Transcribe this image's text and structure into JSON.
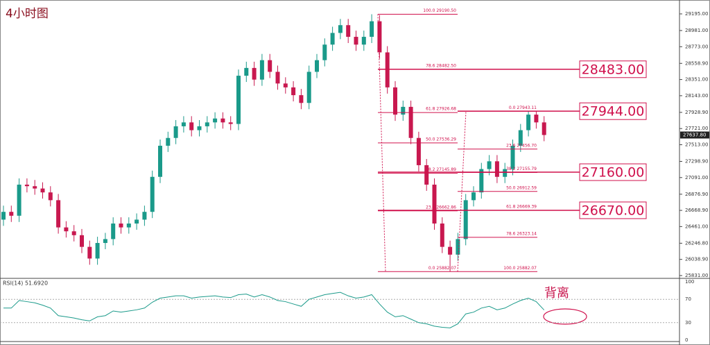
{
  "chart_data": {
    "type": "candlestick",
    "title": "4小时图",
    "open": [
      26550,
      26650,
      26600,
      27000,
      26980,
      26950,
      26900,
      26800,
      26450,
      26400,
      26350,
      26200,
      26050,
      26250,
      26300,
      26500,
      26450,
      26500,
      26550,
      26650,
      27100,
      27500,
      27600,
      27750,
      27800,
      27700,
      27750,
      27800,
      27850,
      27800,
      27780,
      28400,
      28500,
      28350,
      28600,
      28450,
      28300,
      28250,
      28150,
      28050,
      28450,
      28600,
      28800,
      28950,
      29050,
      28900,
      28800,
      28900,
      29100,
      28700,
      28250,
      27900,
      28000,
      27600,
      27250,
      27000,
      26500,
      26200,
      26100,
      26300,
      26800,
      26900,
      27200,
      27300,
      27100,
      27200,
      27500,
      27700,
      27900,
      27800
    ],
    "high": [
      26730,
      26730,
      27080,
      27080,
      27060,
      27030,
      26980,
      26880,
      26530,
      26480,
      26430,
      26280,
      26330,
      26380,
      26580,
      26580,
      26580,
      26630,
      26730,
      27180,
      27580,
      27680,
      27830,
      27880,
      27880,
      27830,
      27880,
      27930,
      27930,
      27880,
      28480,
      28580,
      28580,
      28680,
      28680,
      28530,
      28380,
      28330,
      28230,
      28530,
      28680,
      28880,
      29030,
      29130,
      29130,
      28980,
      28980,
      29190.5,
      29180,
      28780,
      28330,
      28080,
      28080,
      27680,
      27330,
      27080,
      26580,
      26280,
      26380,
      26880,
      26980,
      27280,
      27380,
      27380,
      27280,
      27580,
      27780,
      27943.11,
      27940,
      27880
    ],
    "low": [
      26470,
      26520,
      26520,
      26900,
      26870,
      26820,
      26720,
      26370,
      26320,
      26270,
      26120,
      25970,
      25970,
      26170,
      26220,
      26370,
      26370,
      26420,
      26470,
      26570,
      27020,
      27420,
      27520,
      27670,
      27620,
      27620,
      27670,
      27720,
      27720,
      27700,
      27700,
      28320,
      28270,
      28270,
      28370,
      28220,
      28170,
      28070,
      27970,
      27970,
      28370,
      28520,
      28720,
      28870,
      28820,
      28720,
      28720,
      28820,
      28620,
      28170,
      27820,
      27820,
      27520,
      27170,
      26920,
      26420,
      26120,
      25882.07,
      26020,
      26220,
      26720,
      26820,
      27120,
      27020,
      27020,
      27120,
      27420,
      27620,
      27720,
      27558
    ],
    "close": [
      26650,
      26600,
      27000,
      26980,
      26950,
      26900,
      26800,
      26450,
      26400,
      26350,
      26200,
      26050,
      26250,
      26300,
      26500,
      26450,
      26500,
      26550,
      26650,
      27100,
      27500,
      27600,
      27750,
      27800,
      27700,
      27750,
      27800,
      27850,
      27800,
      27780,
      28400,
      28500,
      28350,
      28600,
      28450,
      28300,
      28250,
      28150,
      28050,
      28450,
      28600,
      28800,
      28950,
      29050,
      28900,
      28800,
      28900,
      29100,
      28700,
      28250,
      27900,
      28000,
      27600,
      27250,
      27000,
      26500,
      26200,
      26100,
      26300,
      26800,
      26900,
      27200,
      27300,
      27100,
      27200,
      27500,
      27700,
      27900,
      27800,
      27637.8
    ],
    "up_color": "#1a9a8a",
    "down_color": "#c8184f",
    "ylim": [
      25804,
      29302
    ],
    "yticks": [
      {
        "value": 29195,
        "label": "29195.00"
      },
      {
        "value": 28981,
        "label": "28981.00"
      },
      {
        "value": 28773,
        "label": "28773.00"
      },
      {
        "value": 28558.9,
        "label": "28558.90"
      },
      {
        "value": 28351,
        "label": "28351.00"
      },
      {
        "value": 28143,
        "label": "28143.00"
      },
      {
        "value": 27928.9,
        "label": "27928.90"
      },
      {
        "value": 27721,
        "label": "27721.00"
      },
      {
        "value": 27513,
        "label": "27513.00"
      },
      {
        "value": 27298.9,
        "label": "27298.90"
      },
      {
        "value": 27091,
        "label": "27091.00"
      },
      {
        "value": 26876.9,
        "label": "26876.90"
      },
      {
        "value": 26668.9,
        "label": "26668.90"
      },
      {
        "value": 26461,
        "label": "26461.00"
      },
      {
        "value": 26246.8,
        "label": "26246.80"
      },
      {
        "value": 26038.9,
        "label": "26038.90"
      },
      {
        "value": 25831,
        "label": "25831.00"
      }
    ],
    "last_price": {
      "value": 27637.8,
      "label": "27637.80"
    },
    "fib_left": [
      {
        "label": "100.0  29190.50",
        "value": 29190.5
      },
      {
        "label": "78.6  28482.50",
        "value": 28482.5
      },
      {
        "label": "61.8  27926.68",
        "value": 27926.68
      },
      {
        "label": "50.0  27536.29",
        "value": 27536.29
      },
      {
        "label": "38.2  27145.89",
        "value": 27145.89
      },
      {
        "label": "23.6  26662.86",
        "value": 26662.86
      },
      {
        "label": "0.0  25882.07",
        "value": 25882.07
      }
    ],
    "fib_right": [
      {
        "label": "0.0  27943.11",
        "value": 27943.11
      },
      {
        "label": "23.6  27456.70",
        "value": 27456.7
      },
      {
        "label": "38.2  27155.79",
        "value": 27155.79
      },
      {
        "label": "50.0  26912.59",
        "value": 26912.59
      },
      {
        "label": "61.8  26669.39",
        "value": 26669.39
      },
      {
        "label": "78.6  26323.14",
        "value": 26323.14
      },
      {
        "label": "100.0  25882.07",
        "value": 25882.07
      }
    ],
    "levels": [
      {
        "label": "28483.00",
        "value": 28483
      },
      {
        "label": "27944.00",
        "value": 27944
      },
      {
        "label": "27160.00",
        "value": 27160
      },
      {
        "label": "26670.00",
        "value": 26670
      }
    ],
    "level_color": "#d0104c",
    "rsi": {
      "title": "RSI(14) 51.6920",
      "color": "#1a9a8a",
      "ylim": [
        0,
        100
      ],
      "yticks": [
        100,
        70,
        30,
        0
      ],
      "guides": [
        70,
        30
      ],
      "values": [
        55,
        55,
        68,
        66,
        64,
        60,
        55,
        42,
        40,
        38,
        35,
        33,
        40,
        42,
        50,
        48,
        50,
        52,
        55,
        65,
        72,
        74,
        76,
        76,
        72,
        74,
        75,
        76,
        74,
        73,
        78,
        79,
        74,
        78,
        74,
        68,
        66,
        62,
        58,
        70,
        74,
        78,
        80,
        82,
        76,
        72,
        74,
        78,
        62,
        48,
        40,
        42,
        36,
        30,
        28,
        24,
        22,
        21,
        28,
        45,
        48,
        55,
        58,
        52,
        55,
        62,
        68,
        72,
        66,
        51.692
      ],
      "annotation": "背离"
    }
  }
}
